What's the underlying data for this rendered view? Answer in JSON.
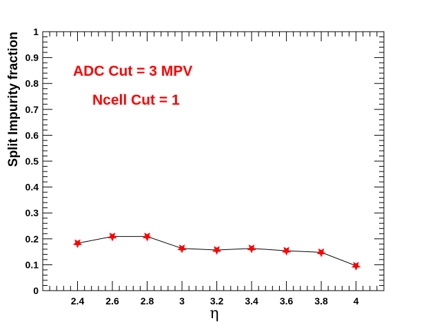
{
  "chart_data": {
    "type": "line",
    "title": "",
    "xlabel": "η",
    "ylabel": "Split Impurity fraction",
    "xlim": [
      2.2,
      4.16
    ],
    "ylim": [
      0,
      1
    ],
    "grid": false,
    "x_ticks": [
      2.4,
      2.6,
      2.8,
      3,
      3.2,
      3.4,
      3.6,
      3.8,
      4
    ],
    "x_tick_labels": [
      "2.4",
      "2.6",
      "2.8",
      "3",
      "3.2",
      "3.4",
      "3.6",
      "3.8",
      "4"
    ],
    "y_ticks": [
      0,
      0.1,
      0.2,
      0.3,
      0.4,
      0.5,
      0.6,
      0.7,
      0.8,
      0.9,
      1
    ],
    "y_tick_labels": [
      "0",
      "0.1",
      "0.2",
      "0.3",
      "0.4",
      "0.5",
      "0.6",
      "0.7",
      "0.8",
      "0.9",
      "1"
    ],
    "series": [
      {
        "x": [
          2.4,
          2.6,
          2.8,
          3.0,
          3.2,
          3.4,
          3.6,
          3.8,
          4.0
        ],
        "y": [
          0.183,
          0.209,
          0.209,
          0.163,
          0.157,
          0.163,
          0.154,
          0.148,
          0.096
        ],
        "marker": "star",
        "marker_color": "#ff0000",
        "line_color": "#000000"
      }
    ],
    "annotations": [
      {
        "text": "ADC Cut = 3 MPV",
        "color": "#ff0000"
      },
      {
        "text": "Ncell Cut = 1",
        "color": "#ff0000"
      }
    ]
  }
}
